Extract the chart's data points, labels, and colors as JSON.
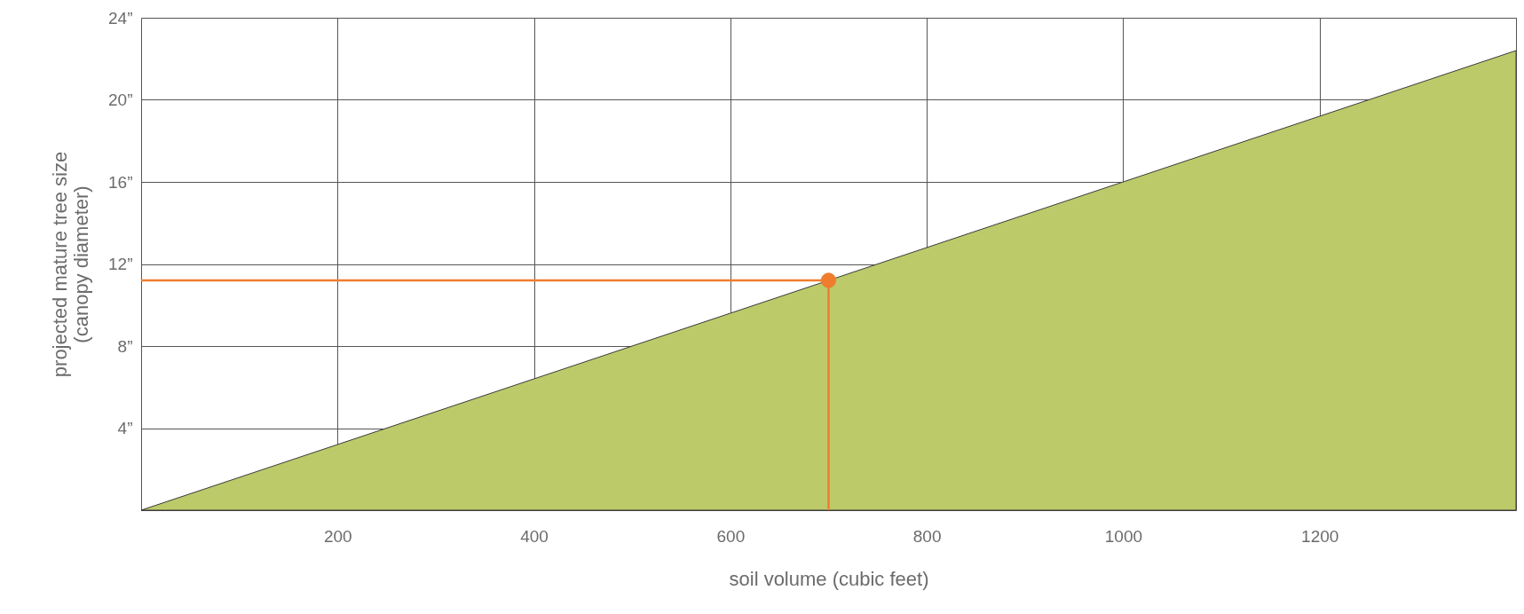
{
  "chart_data": {
    "type": "area",
    "xlabel": "soil volume (cubic feet)",
    "ylabel": "projected mature tree size\n(canopy diameter)",
    "xlim": [
      0,
      1400
    ],
    "ylim": [
      0,
      24
    ],
    "xticks": [
      200,
      400,
      600,
      800,
      1000,
      1200
    ],
    "yticks": [
      {
        "value": 4,
        "label": "4”"
      },
      {
        "value": 8,
        "label": "8”"
      },
      {
        "value": 12,
        "label": "12”"
      },
      {
        "value": 16,
        "label": "16”"
      },
      {
        "value": 20,
        "label": "20”"
      },
      {
        "value": 24,
        "label": "24”"
      }
    ],
    "grid": true,
    "series": [
      {
        "type": "area",
        "color": "#bdca6a",
        "x": [
          0,
          1400
        ],
        "values": [
          0,
          22.4
        ]
      },
      {
        "type": "line",
        "color": "#f07d2e",
        "x": [
          0,
          700,
          700
        ],
        "values": [
          11.2,
          11.2,
          0
        ]
      },
      {
        "type": "scatter",
        "color": "#f07d2e",
        "marker": "circle",
        "x": [
          700
        ],
        "values": [
          11.2
        ]
      }
    ]
  }
}
